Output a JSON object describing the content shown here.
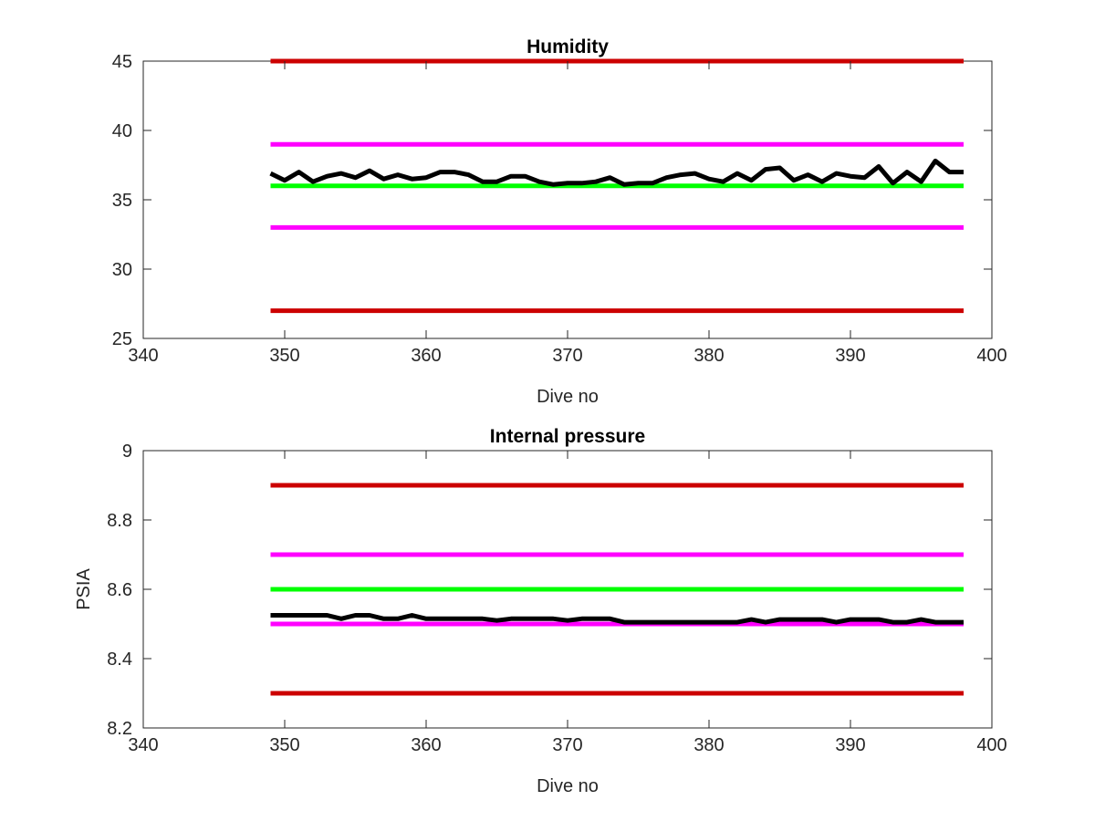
{
  "colors": {
    "limit_outer": "#cc0000",
    "limit_inner": "#ff00ff",
    "target": "#00ff00",
    "measured": "#000000",
    "axis": "#262626",
    "background": "#ffffff"
  },
  "chart_data": [
    {
      "type": "line",
      "title": "Humidity",
      "xlabel": "Dive no",
      "ylabel": "",
      "xlim": [
        340,
        400
      ],
      "ylim": [
        25,
        45
      ],
      "xticks": [
        340,
        350,
        360,
        370,
        380,
        390,
        400
      ],
      "yticks": [
        25,
        30,
        35,
        40,
        45
      ],
      "xtick_labels": [
        "340",
        "350",
        "360",
        "370",
        "380",
        "390",
        "400"
      ],
      "ytick_labels": [
        "25",
        "30",
        "35",
        "40",
        "45"
      ],
      "grid": false,
      "series": [
        {
          "role": "outer-limit",
          "color": "#cc0000",
          "x": [
            349,
            398
          ],
          "y": [
            45,
            45
          ]
        },
        {
          "role": "inner-limit",
          "color": "#ff00ff",
          "x": [
            349,
            398
          ],
          "y": [
            39,
            39
          ]
        },
        {
          "role": "target",
          "color": "#00ff00",
          "x": [
            349,
            398
          ],
          "y": [
            36,
            36
          ]
        },
        {
          "role": "inner-limit",
          "color": "#ff00ff",
          "x": [
            349,
            398
          ],
          "y": [
            33,
            33
          ]
        },
        {
          "role": "outer-limit",
          "color": "#cc0000",
          "x": [
            349,
            398
          ],
          "y": [
            27,
            27
          ]
        },
        {
          "role": "measured",
          "color": "#000000",
          "x": [
            349,
            350,
            351,
            352,
            353,
            354,
            355,
            356,
            357,
            358,
            359,
            360,
            361,
            362,
            363,
            364,
            365,
            366,
            367,
            368,
            369,
            370,
            371,
            372,
            373,
            374,
            375,
            376,
            377,
            378,
            379,
            380,
            381,
            382,
            383,
            384,
            385,
            386,
            387,
            388,
            389,
            390,
            391,
            392,
            393,
            394,
            395,
            396,
            397,
            398
          ],
          "y": [
            36.9,
            36.4,
            37.0,
            36.3,
            36.7,
            36.9,
            36.6,
            37.1,
            36.5,
            36.8,
            36.5,
            36.6,
            37.0,
            37.0,
            36.8,
            36.3,
            36.3,
            36.7,
            36.7,
            36.3,
            36.1,
            36.2,
            36.2,
            36.3,
            36.6,
            36.1,
            36.2,
            36.2,
            36.6,
            36.8,
            36.9,
            36.5,
            36.3,
            36.9,
            36.4,
            37.2,
            37.3,
            36.4,
            36.8,
            36.3,
            36.9,
            36.7,
            36.6,
            37.4,
            36.2,
            37.0,
            36.3,
            37.8,
            37.0,
            37.0
          ]
        }
      ]
    },
    {
      "type": "line",
      "title": "Internal pressure",
      "xlabel": "Dive no",
      "ylabel": "PSIA",
      "xlim": [
        340,
        400
      ],
      "ylim": [
        8.2,
        9
      ],
      "xticks": [
        340,
        350,
        360,
        370,
        380,
        390,
        400
      ],
      "yticks": [
        8.2,
        8.4,
        8.6,
        8.8,
        9
      ],
      "xtick_labels": [
        "340",
        "350",
        "360",
        "370",
        "380",
        "390",
        "400"
      ],
      "ytick_labels": [
        "8.2",
        "8.4",
        "8.6",
        "8.8",
        "9"
      ],
      "grid": false,
      "series": [
        {
          "role": "outer-limit",
          "color": "#cc0000",
          "x": [
            349,
            398
          ],
          "y": [
            8.9,
            8.9
          ]
        },
        {
          "role": "inner-limit",
          "color": "#ff00ff",
          "x": [
            349,
            398
          ],
          "y": [
            8.7,
            8.7
          ]
        },
        {
          "role": "target",
          "color": "#00ff00",
          "x": [
            349,
            398
          ],
          "y": [
            8.6,
            8.6
          ]
        },
        {
          "role": "inner-limit",
          "color": "#ff00ff",
          "x": [
            349,
            398
          ],
          "y": [
            8.5,
            8.5
          ]
        },
        {
          "role": "outer-limit",
          "color": "#cc0000",
          "x": [
            349,
            398
          ],
          "y": [
            8.3,
            8.3
          ]
        },
        {
          "role": "measured",
          "color": "#000000",
          "x": [
            349,
            350,
            351,
            352,
            353,
            354,
            355,
            356,
            357,
            358,
            359,
            360,
            361,
            362,
            363,
            364,
            365,
            366,
            367,
            368,
            369,
            370,
            371,
            372,
            373,
            374,
            375,
            376,
            377,
            378,
            379,
            380,
            381,
            382,
            383,
            384,
            385,
            386,
            387,
            388,
            389,
            390,
            391,
            392,
            393,
            394,
            395,
            396,
            397,
            398
          ],
          "y": [
            8.525,
            8.525,
            8.525,
            8.525,
            8.525,
            8.515,
            8.525,
            8.525,
            8.515,
            8.515,
            8.525,
            8.515,
            8.515,
            8.515,
            8.515,
            8.515,
            8.51,
            8.515,
            8.515,
            8.515,
            8.515,
            8.51,
            8.515,
            8.515,
            8.515,
            8.505,
            8.505,
            8.505,
            8.505,
            8.505,
            8.505,
            8.505,
            8.505,
            8.505,
            8.513,
            8.505,
            8.513,
            8.513,
            8.513,
            8.513,
            8.505,
            8.513,
            8.513,
            8.513,
            8.505,
            8.505,
            8.513,
            8.505,
            8.505,
            8.505
          ]
        }
      ]
    }
  ]
}
